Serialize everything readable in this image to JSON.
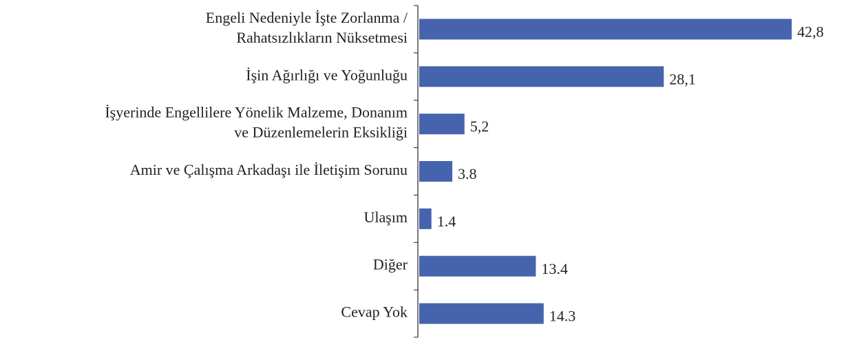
{
  "chart_data": {
    "type": "barh",
    "categories": [
      [
        "Engeli Nedeniyle İşte Zorlanma /",
        "Rahatsızlıkların Nüksetmesi"
      ],
      [
        "İşin Ağırlığı ve Yoğunluğu"
      ],
      [
        "İşyerinde Engellilere Yönelik Malzeme, Donanım",
        "ve Düzenlemelerin Eksikliği"
      ],
      [
        "Amir ve Çalışma Arkadaşı ile İletişim Sorunu"
      ],
      [
        "Ulaşım"
      ],
      [
        "Diğer"
      ],
      [
        "Cevap Yok"
      ]
    ],
    "values": [
      42.8,
      28.1,
      5.2,
      3.8,
      1.4,
      13.4,
      14.3
    ],
    "value_labels": [
      "42,8",
      "28,1",
      "5,2",
      "3.8",
      "1.4",
      "13.4",
      "14.3"
    ],
    "color": "#4664ae"
  }
}
